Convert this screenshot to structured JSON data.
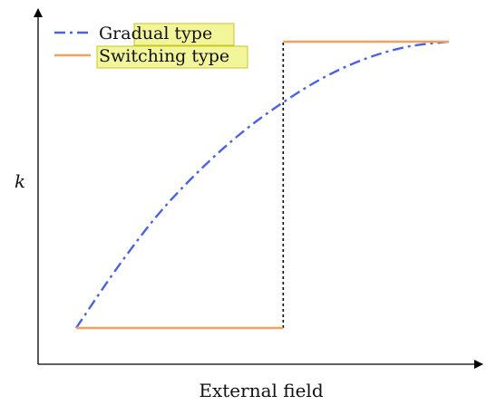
{
  "chart_data": {
    "type": "line",
    "title": "",
    "xlabel": "External field",
    "ylabel": "k",
    "xlim": [
      0,
      10
    ],
    "ylim": [
      0,
      10
    ],
    "grid": false,
    "legend_position": "top-left",
    "series": [
      {
        "name": "Gradual type",
        "style": "dash-dot",
        "color": "#4a62e6",
        "x": [
          1,
          2,
          3,
          4,
          5,
          6,
          7,
          8,
          9,
          10
        ],
        "y": [
          1,
          2.8,
          4.4,
          5.7,
          6.8,
          7.7,
          8.45,
          9.0,
          9.35,
          9.5
        ]
      },
      {
        "name": "Switching type",
        "style": "solid",
        "color": "#f2a05a",
        "x": [
          1,
          6,
          6,
          10
        ],
        "y": [
          1,
          1,
          9.5,
          9.5
        ]
      }
    ],
    "threshold_line": {
      "x": 6,
      "y_from": 1,
      "y_to": 9.5,
      "style": "dotted",
      "color": "#000000"
    },
    "legend_highlight_color": "#f2f59a"
  }
}
